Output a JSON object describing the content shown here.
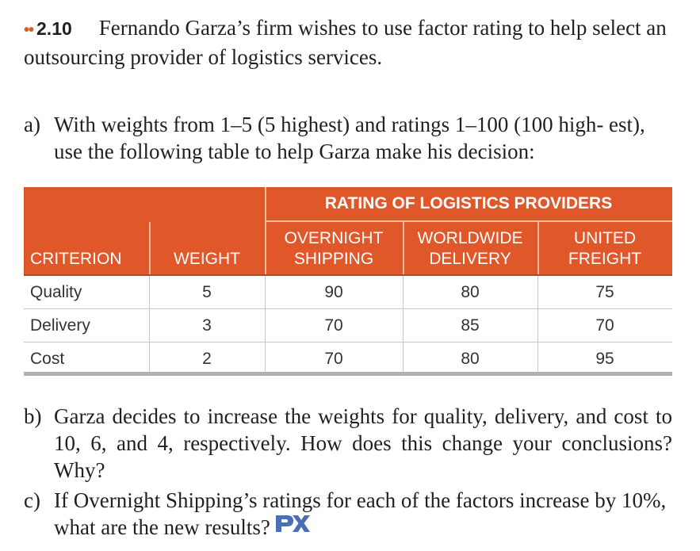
{
  "problem": {
    "dots": "••",
    "number": "2.10",
    "intro": "Fernando Garza’s firm wishes to use factor rating to help select an outsourcing provider of logistics services."
  },
  "part_a": {
    "label": "a)",
    "text": "With weights from 1–5 (5 highest) and ratings 1–100 (100 high- est), use the following table to help Garza make his decision:"
  },
  "table": {
    "group_header": "RATING OF LOGISTICS PROVIDERS",
    "columns": {
      "criterion": "CRITERION",
      "weight": "WEIGHT",
      "overnight": [
        "OVERNIGHT",
        "SHIPPING"
      ],
      "worldwide": [
        "WORLDWIDE",
        "DELIVERY"
      ],
      "united": [
        "UNITED",
        "FREIGHT"
      ]
    },
    "rows": [
      {
        "criterion": "Quality",
        "weight": "5",
        "overnight": "90",
        "worldwide": "80",
        "united": "75"
      },
      {
        "criterion": "Delivery",
        "weight": "3",
        "overnight": "70",
        "worldwide": "85",
        "united": "70"
      },
      {
        "criterion": "Cost",
        "weight": "2",
        "overnight": "70",
        "worldwide": "80",
        "united": "95"
      }
    ]
  },
  "part_b": {
    "label": "b)",
    "text": "Garza decides to increase the weights for quality, delivery, and cost to 10, 6, and 4, respectively. How does this change your conclusions? Why?"
  },
  "part_c": {
    "label": "c)",
    "text": "If Overnight Shipping’s ratings for each of the factors increase by 10%, what are the new results?"
  },
  "icons": {
    "px_icon": "px-logo-icon",
    "px_color": "#4a6fb5",
    "accent": "#e0582a"
  }
}
